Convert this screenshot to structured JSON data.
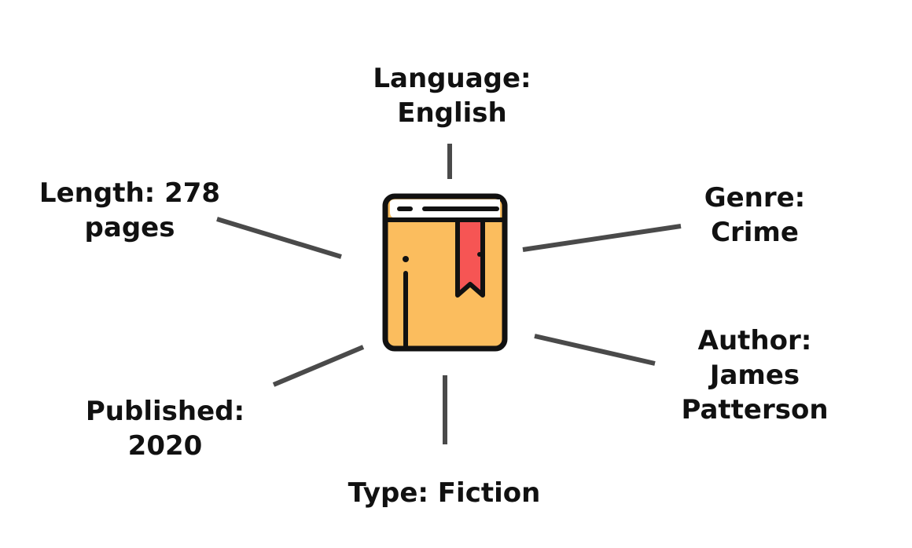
{
  "center": {
    "icon": "book-with-bookmark-icon",
    "colors": {
      "cover": "#FBBD5E",
      "bookmark": "#F65554",
      "pages": "#FFFFFF",
      "outline": "#111111"
    }
  },
  "attributes": {
    "language": {
      "line1": "Language:",
      "line2": "English"
    },
    "genre": {
      "line1": "Genre:",
      "line2": "Crime"
    },
    "author": {
      "line1": "Author:",
      "line2": "James",
      "line3": "Patterson"
    },
    "type": {
      "line1": "Type: Fiction"
    },
    "published": {
      "line1": "Published:",
      "line2": "2020"
    },
    "length": {
      "line1": "Length: 278",
      "line2": "pages"
    }
  },
  "connector_color": "#4a4a4a"
}
